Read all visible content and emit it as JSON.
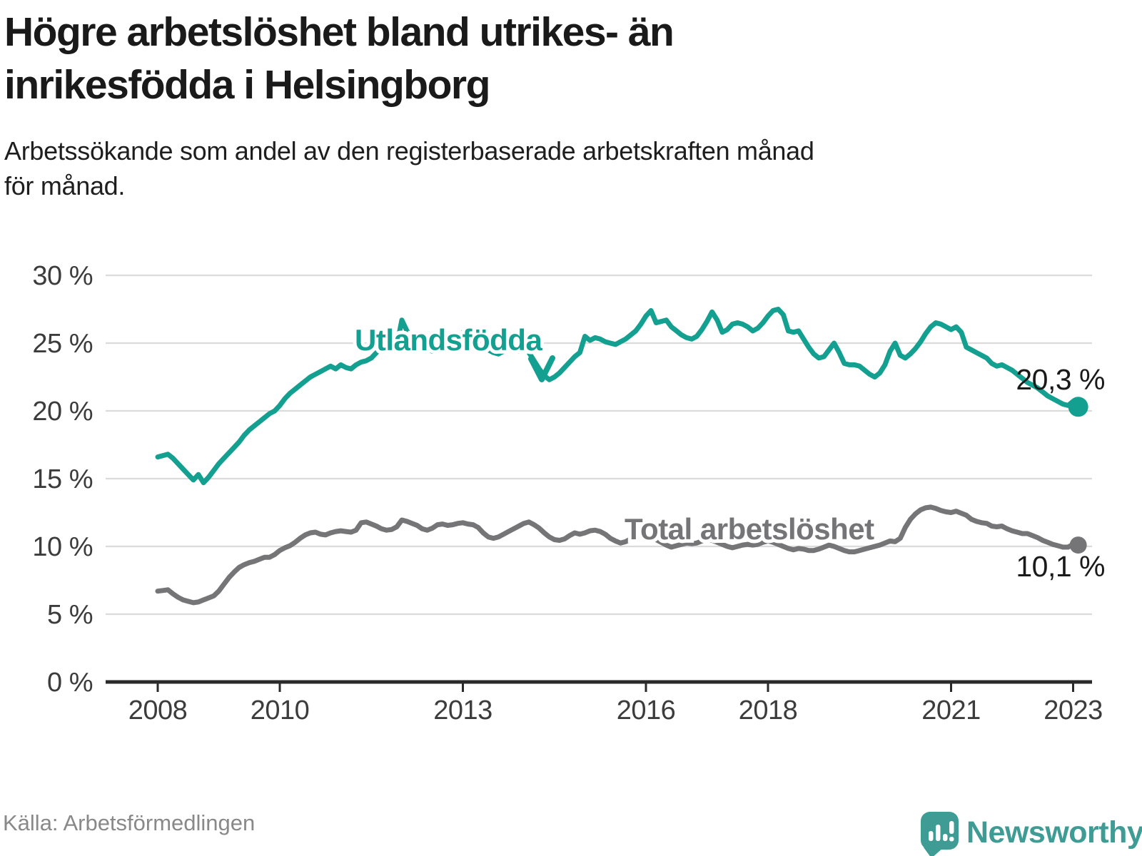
{
  "header": {
    "title_lines": [
      "Högre arbetslöshet bland utrikes- än",
      "inrikesfödda i Helsingborg"
    ],
    "subtitle_lines": [
      "Arbetssökande som andel av den registerbaserade arbetskraften månad",
      "för månad."
    ]
  },
  "footer": {
    "source": "Källa: Arbetsförmedlingen",
    "brand": "Newsworthy",
    "brand_color": "#3e9c95"
  },
  "chart_data": {
    "type": "line",
    "title": "Högre arbetslöshet bland utrikes- än inrikesfödda i Helsingborg",
    "xlabel": "",
    "ylabel": "Arbetssökande som andel av den registerbaserade arbetskraften",
    "x_unit": "month",
    "x_start_year": 2008,
    "x_end": "2023-02",
    "ylim": [
      0,
      30
    ],
    "grid": "horizontal",
    "x_ticks": [
      2008,
      2010,
      2013,
      2016,
      2018,
      2021,
      2023
    ],
    "x_tick_labels": [
      "2008",
      "2010",
      "2013",
      "2016",
      "2018",
      "2021",
      "2023"
    ],
    "y_ticks": [
      0,
      5,
      10,
      15,
      20,
      25,
      30
    ],
    "y_tick_labels": [
      "0 %",
      "5 %",
      "10 %",
      "15 %",
      "20 %",
      "25 %",
      "30 %"
    ],
    "axis_color": "#2a2a2a",
    "gridline_color": "#dbdbdb",
    "series": [
      {
        "name": "Utlandsfödda",
        "color": "#14a091",
        "end_label": "20,3 %",
        "end_value": 20.3,
        "values": [
          16.6,
          16.7,
          16.8,
          16.5,
          16.1,
          15.7,
          15.3,
          14.9,
          15.3,
          14.7,
          15.1,
          15.6,
          16.1,
          16.5,
          16.9,
          17.3,
          17.7,
          18.2,
          18.6,
          18.9,
          19.2,
          19.5,
          19.8,
          20.0,
          20.4,
          20.9,
          21.3,
          21.6,
          21.9,
          22.2,
          22.5,
          22.7,
          22.9,
          23.1,
          23.3,
          23.1,
          23.4,
          23.2,
          23.1,
          23.4,
          23.6,
          23.7,
          23.9,
          24.3,
          24.7,
          24.9,
          24.9,
          24.8,
          26.7,
          25.9,
          25.4,
          25.1,
          24.9,
          24.6,
          24.4,
          24.5,
          24.7,
          24.9,
          25.0,
          25.1,
          25.8,
          25.5,
          25.2,
          25.0,
          24.8,
          24.5,
          24.3,
          24.2,
          24.4,
          24.6,
          24.5,
          24.4,
          24.8,
          24.3,
          23.7,
          23.1,
          22.6,
          22.3,
          22.5,
          22.8,
          23.2,
          23.6,
          24.0,
          24.3,
          25.5,
          25.2,
          25.4,
          25.3,
          25.1,
          25.0,
          24.9,
          25.1,
          25.3,
          25.6,
          25.9,
          26.4,
          27.0,
          27.4,
          26.5,
          26.6,
          26.7,
          26.2,
          25.9,
          25.6,
          25.4,
          25.3,
          25.5,
          26.0,
          26.6,
          27.3,
          26.7,
          25.8,
          26.0,
          26.4,
          26.5,
          26.4,
          26.2,
          25.9,
          26.1,
          26.5,
          27.0,
          27.4,
          27.5,
          27.1,
          25.9,
          25.8,
          25.9,
          25.3,
          24.7,
          24.2,
          23.9,
          24.0,
          24.5,
          25.0,
          24.3,
          23.5,
          23.4,
          23.4,
          23.3,
          23.0,
          22.7,
          22.5,
          22.8,
          23.4,
          24.4,
          25.0,
          24.1,
          23.9,
          24.2,
          24.6,
          25.1,
          25.7,
          26.2,
          26.5,
          26.4,
          26.2,
          26.0,
          26.2,
          25.8,
          24.7,
          24.5,
          24.3,
          24.1,
          23.9,
          23.5,
          23.3,
          23.4,
          23.2,
          23.0,
          22.7,
          22.4,
          22.1,
          21.9,
          21.7,
          21.4,
          21.1,
          20.9,
          20.7,
          20.5,
          20.4,
          20.7,
          20.3
        ]
      },
      {
        "name": "Total arbetslöshet",
        "color": "#757578",
        "end_label": "10,1 %",
        "end_value": 10.1,
        "values": [
          6.7,
          6.75,
          6.8,
          6.5,
          6.25,
          6.05,
          5.95,
          5.85,
          5.9,
          6.05,
          6.2,
          6.35,
          6.7,
          7.2,
          7.7,
          8.1,
          8.45,
          8.65,
          8.8,
          8.9,
          9.05,
          9.2,
          9.2,
          9.4,
          9.7,
          9.9,
          10.05,
          10.3,
          10.6,
          10.85,
          11.0,
          11.05,
          10.9,
          10.85,
          11.0,
          11.1,
          11.15,
          11.1,
          11.05,
          11.2,
          11.75,
          11.8,
          11.65,
          11.5,
          11.3,
          11.2,
          11.25,
          11.45,
          11.95,
          11.85,
          11.7,
          11.55,
          11.3,
          11.2,
          11.35,
          11.6,
          11.65,
          11.55,
          11.6,
          11.7,
          11.75,
          11.65,
          11.6,
          11.4,
          11.0,
          10.7,
          10.6,
          10.7,
          10.9,
          11.1,
          11.3,
          11.5,
          11.7,
          11.8,
          11.6,
          11.35,
          11.0,
          10.7,
          10.5,
          10.45,
          10.55,
          10.8,
          11.0,
          10.9,
          11.0,
          11.15,
          11.2,
          11.1,
          10.9,
          10.6,
          10.4,
          10.25,
          10.35,
          10.55,
          10.75,
          10.9,
          10.8,
          10.7,
          10.5,
          10.3,
          10.1,
          9.95,
          10.05,
          10.15,
          10.25,
          10.2,
          10.25,
          10.4,
          10.55,
          10.45,
          10.3,
          10.15,
          10.0,
          9.9,
          10.0,
          10.1,
          10.15,
          10.1,
          10.15,
          10.3,
          10.4,
          10.3,
          10.15,
          10.0,
          9.85,
          9.75,
          9.85,
          9.8,
          9.7,
          9.7,
          9.8,
          9.95,
          10.1,
          10.0,
          9.85,
          9.7,
          9.6,
          9.6,
          9.7,
          9.8,
          9.9,
          10.0,
          10.1,
          10.25,
          10.4,
          10.35,
          10.6,
          11.4,
          12.0,
          12.4,
          12.7,
          12.85,
          12.9,
          12.8,
          12.65,
          12.55,
          12.5,
          12.6,
          12.45,
          12.3,
          12.0,
          11.85,
          11.75,
          11.7,
          11.5,
          11.45,
          11.5,
          11.3,
          11.15,
          11.05,
          10.95,
          10.95,
          10.8,
          10.65,
          10.45,
          10.3,
          10.15,
          10.05,
          9.95,
          9.95,
          10.15,
          10.1
        ]
      }
    ]
  }
}
